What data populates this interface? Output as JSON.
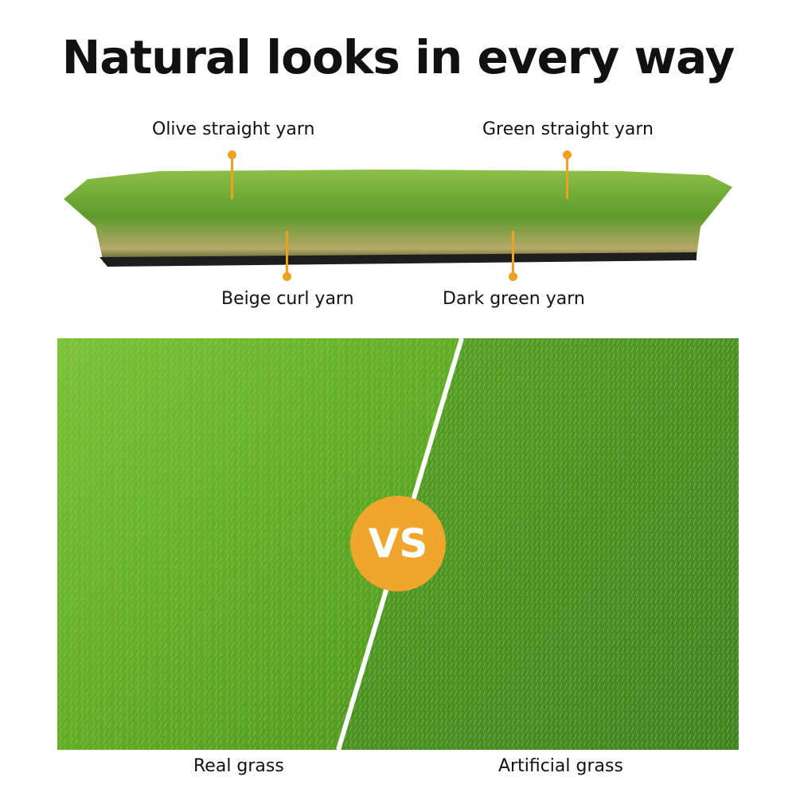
{
  "title": "Natural looks in every way",
  "yarn_labels": {
    "olive": "Olive straight yarn",
    "green": "Green straight yarn",
    "beige": "Beige curl yarn",
    "dark_green": "Dark green yarn"
  },
  "comparison": {
    "badge": "VS",
    "left_caption": "Real grass",
    "right_caption": "Artificial grass"
  },
  "colors": {
    "accent": "#f0a52c",
    "real_grass": "#6fb52c",
    "artificial_grass": "#4e9a22"
  }
}
